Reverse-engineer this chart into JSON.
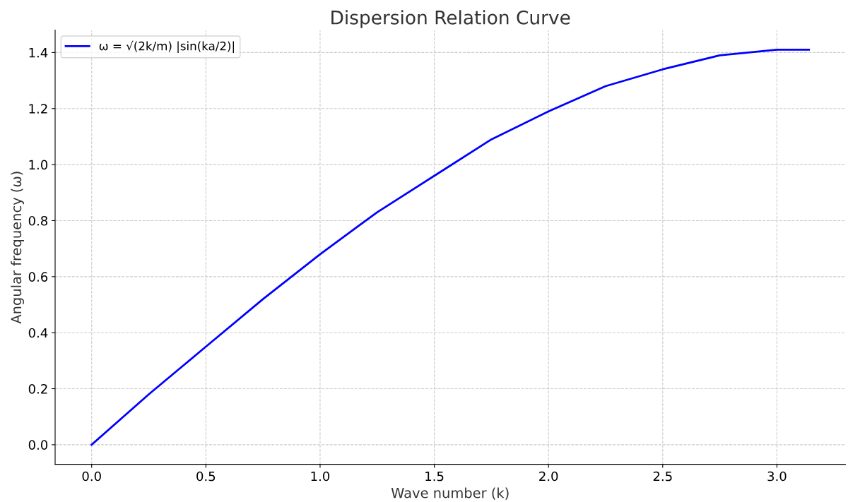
{
  "chart_data": {
    "type": "line",
    "title": "Dispersion Relation Curve",
    "xlabel": "Wave number (k)",
    "ylabel": "Angular frequency (ω)",
    "x": [
      0,
      0.25,
      0.5,
      0.75,
      1.0,
      1.25,
      1.5,
      1.75,
      2.0,
      2.25,
      2.5,
      2.75,
      3.0,
      3.14
    ],
    "series": [
      {
        "name": "ω = √(2k/m) |sin(ka/2)|",
        "color": "#0000ff",
        "values": [
          0,
          0.18,
          0.35,
          0.52,
          0.68,
          0.83,
          0.96,
          1.09,
          1.19,
          1.28,
          1.34,
          1.39,
          1.41,
          1.41
        ]
      }
    ],
    "xlim": [
      -0.16,
      3.3
    ],
    "ylim": [
      -0.07,
      1.48
    ],
    "xticks": [
      {
        "value": 0,
        "label": "0.0"
      },
      0.5,
      {
        "value": 1,
        "label": "1.0"
      },
      1.5,
      {
        "value": 2,
        "label": "2.0"
      },
      2.5,
      {
        "value": 3,
        "label": "3.0"
      }
    ],
    "yticks": [
      {
        "value": 0,
        "label": "0.0"
      },
      0.2,
      0.4,
      0.6,
      0.8,
      {
        "value": 1,
        "label": "1.0"
      },
      1.2,
      1.4
    ],
    "grid": true,
    "legend": "top left",
    "marker": "none",
    "line_style": "solid"
  }
}
